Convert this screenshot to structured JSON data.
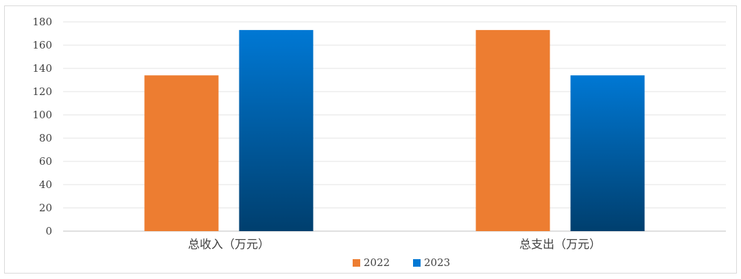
{
  "chart_data": {
    "type": "bar",
    "categories": [
      "总收入（万元）",
      "总支出（万元）"
    ],
    "series": [
      {
        "name": "2022",
        "values": [
          134,
          173
        ],
        "color": "#ed7d31",
        "gradient": false
      },
      {
        "name": "2023",
        "values": [
          173,
          134
        ],
        "color_top": "#0078d4",
        "color_bottom": "#003f6e",
        "gradient": true
      }
    ],
    "ylim": [
      0,
      180
    ],
    "yticks": [
      "0",
      "20",
      "40",
      "60",
      "80",
      "100",
      "120",
      "140",
      "160",
      "180"
    ],
    "grid": true,
    "legend": "bottom",
    "title": "",
    "xlabel": "",
    "ylabel": ""
  }
}
